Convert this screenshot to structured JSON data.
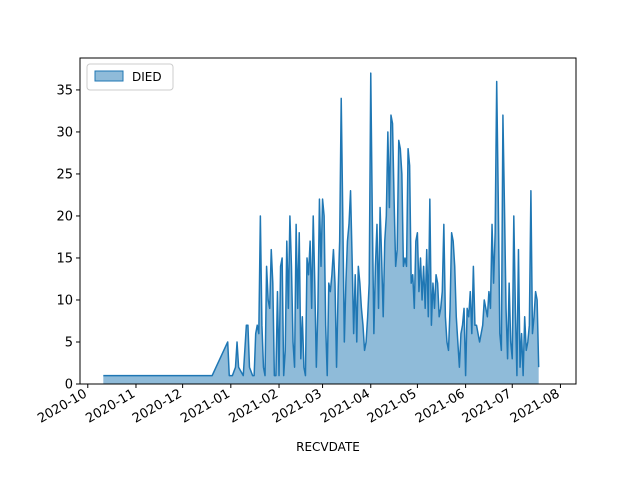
{
  "chart_data": {
    "type": "area",
    "title": "",
    "xlabel": "RECVDATE",
    "ylabel": "",
    "xlim": [
      "2020-09-26",
      "2021-08-11"
    ],
    "ylim": [
      0,
      38.8
    ],
    "x_ticks": [
      "2020-10-01",
      "2020-11-01",
      "2020-12-01",
      "2021-01-01",
      "2021-02-01",
      "2021-03-01",
      "2021-04-01",
      "2021-05-01",
      "2021-06-01",
      "2021-07-01",
      "2021-08-01"
    ],
    "x_tick_labels": [
      "2020-10",
      "2020-11",
      "2020-12",
      "2021-01",
      "2021-02",
      "2021-03",
      "2021-04",
      "2021-05",
      "2021-06",
      "2021-07",
      "2021-08"
    ],
    "y_ticks": [
      0,
      5,
      10,
      15,
      20,
      25,
      30,
      35
    ],
    "y_tick_labels": [
      "0",
      "5",
      "10",
      "15",
      "20",
      "25",
      "30",
      "35"
    ],
    "grid": false,
    "legend": {
      "position": "top-left",
      "entries": [
        "DIED"
      ]
    },
    "colors": {
      "line": "#1f77b4",
      "fill": "#1f77b4",
      "fill_opacity": 0.5
    },
    "series": [
      {
        "name": "DIED",
        "points": [
          [
            "2020-10-11",
            1
          ],
          [
            "2020-11-15",
            1
          ],
          [
            "2020-12-20",
            1
          ],
          [
            "2020-12-30",
            5
          ],
          [
            "2020-12-31",
            1
          ],
          [
            "2021-01-02",
            1
          ],
          [
            "2021-01-04",
            2
          ],
          [
            "2021-01-05",
            5
          ],
          [
            "2021-01-06",
            2
          ],
          [
            "2021-01-09",
            1
          ],
          [
            "2021-01-11",
            7
          ],
          [
            "2021-01-12",
            7
          ],
          [
            "2021-01-13",
            2
          ],
          [
            "2021-01-15",
            1
          ],
          [
            "2021-01-16",
            1
          ],
          [
            "2021-01-17",
            6
          ],
          [
            "2021-01-18",
            7
          ],
          [
            "2021-01-19",
            6
          ],
          [
            "2021-01-20",
            20
          ],
          [
            "2021-01-21",
            7
          ],
          [
            "2021-01-22",
            2
          ],
          [
            "2021-01-23",
            1
          ],
          [
            "2021-01-24",
            14
          ],
          [
            "2021-01-25",
            10
          ],
          [
            "2021-01-26",
            9
          ],
          [
            "2021-01-27",
            16
          ],
          [
            "2021-01-28",
            12
          ],
          [
            "2021-01-29",
            1
          ],
          [
            "2021-01-30",
            1
          ],
          [
            "2021-01-31",
            11
          ],
          [
            "2021-02-01",
            1
          ],
          [
            "2021-02-02",
            14
          ],
          [
            "2021-02-03",
            15
          ],
          [
            "2021-02-04",
            1
          ],
          [
            "2021-02-05",
            4
          ],
          [
            "2021-02-06",
            17
          ],
          [
            "2021-02-07",
            9
          ],
          [
            "2021-02-08",
            20
          ],
          [
            "2021-02-09",
            14
          ],
          [
            "2021-02-10",
            5
          ],
          [
            "2021-02-11",
            2
          ],
          [
            "2021-02-12",
            19
          ],
          [
            "2021-02-13",
            9
          ],
          [
            "2021-02-14",
            18
          ],
          [
            "2021-02-15",
            3
          ],
          [
            "2021-02-16",
            8
          ],
          [
            "2021-02-17",
            2
          ],
          [
            "2021-02-18",
            1
          ],
          [
            "2021-02-19",
            15
          ],
          [
            "2021-02-20",
            13
          ],
          [
            "2021-02-21",
            17
          ],
          [
            "2021-02-22",
            9
          ],
          [
            "2021-02-23",
            20
          ],
          [
            "2021-02-24",
            12
          ],
          [
            "2021-02-25",
            2
          ],
          [
            "2021-02-26",
            9
          ],
          [
            "2021-02-27",
            22
          ],
          [
            "2021-02-28",
            14
          ],
          [
            "2021-03-01",
            22
          ],
          [
            "2021-03-02",
            20
          ],
          [
            "2021-03-03",
            7
          ],
          [
            "2021-03-04",
            1
          ],
          [
            "2021-03-05",
            12
          ],
          [
            "2021-03-06",
            11
          ],
          [
            "2021-03-07",
            13
          ],
          [
            "2021-03-08",
            16
          ],
          [
            "2021-03-09",
            12
          ],
          [
            "2021-03-10",
            2
          ],
          [
            "2021-03-11",
            11
          ],
          [
            "2021-03-12",
            17
          ],
          [
            "2021-03-13",
            34
          ],
          [
            "2021-03-14",
            20
          ],
          [
            "2021-03-15",
            5
          ],
          [
            "2021-03-16",
            12
          ],
          [
            "2021-03-17",
            17
          ],
          [
            "2021-03-18",
            19
          ],
          [
            "2021-03-19",
            23
          ],
          [
            "2021-03-20",
            15
          ],
          [
            "2021-03-21",
            6
          ],
          [
            "2021-03-22",
            13
          ],
          [
            "2021-03-23",
            5
          ],
          [
            "2021-03-24",
            14
          ],
          [
            "2021-03-25",
            12
          ],
          [
            "2021-03-26",
            9
          ],
          [
            "2021-03-27",
            7
          ],
          [
            "2021-03-28",
            4
          ],
          [
            "2021-03-29",
            5
          ],
          [
            "2021-03-30",
            8
          ],
          [
            "2021-03-31",
            12
          ],
          [
            "2021-04-01",
            37
          ],
          [
            "2021-04-02",
            20
          ],
          [
            "2021-04-03",
            6
          ],
          [
            "2021-04-04",
            14
          ],
          [
            "2021-04-05",
            19
          ],
          [
            "2021-04-06",
            9
          ],
          [
            "2021-04-07",
            21
          ],
          [
            "2021-04-08",
            15
          ],
          [
            "2021-04-09",
            8
          ],
          [
            "2021-04-10",
            17
          ],
          [
            "2021-04-11",
            20
          ],
          [
            "2021-04-12",
            30
          ],
          [
            "2021-04-13",
            21
          ],
          [
            "2021-04-14",
            32
          ],
          [
            "2021-04-15",
            31
          ],
          [
            "2021-04-16",
            22
          ],
          [
            "2021-04-17",
            14
          ],
          [
            "2021-04-18",
            16
          ],
          [
            "2021-04-19",
            29
          ],
          [
            "2021-04-20",
            28
          ],
          [
            "2021-04-21",
            25
          ],
          [
            "2021-04-22",
            14
          ],
          [
            "2021-04-23",
            15
          ],
          [
            "2021-04-24",
            14
          ],
          [
            "2021-04-25",
            28
          ],
          [
            "2021-04-26",
            26
          ],
          [
            "2021-04-27",
            12
          ],
          [
            "2021-04-28",
            13
          ],
          [
            "2021-04-29",
            9
          ],
          [
            "2021-04-30",
            17
          ],
          [
            "2021-05-01",
            18
          ],
          [
            "2021-05-02",
            11
          ],
          [
            "2021-05-03",
            15
          ],
          [
            "2021-05-04",
            10
          ],
          [
            "2021-05-05",
            14
          ],
          [
            "2021-05-06",
            9
          ],
          [
            "2021-05-07",
            16
          ],
          [
            "2021-05-08",
            8
          ],
          [
            "2021-05-09",
            22
          ],
          [
            "2021-05-10",
            7
          ],
          [
            "2021-05-11",
            12
          ],
          [
            "2021-05-12",
            9
          ],
          [
            "2021-05-13",
            13
          ],
          [
            "2021-05-14",
            12
          ],
          [
            "2021-05-15",
            8
          ],
          [
            "2021-05-16",
            9
          ],
          [
            "2021-05-17",
            11
          ],
          [
            "2021-05-18",
            19
          ],
          [
            "2021-05-19",
            8
          ],
          [
            "2021-05-20",
            5
          ],
          [
            "2021-05-21",
            4
          ],
          [
            "2021-05-22",
            9
          ],
          [
            "2021-05-23",
            18
          ],
          [
            "2021-05-24",
            17
          ],
          [
            "2021-05-25",
            14
          ],
          [
            "2021-05-26",
            8
          ],
          [
            "2021-05-27",
            5
          ],
          [
            "2021-05-28",
            2
          ],
          [
            "2021-05-29",
            6
          ],
          [
            "2021-05-30",
            7
          ],
          [
            "2021-05-31",
            9
          ],
          [
            "2021-06-01",
            1
          ],
          [
            "2021-06-02",
            9
          ],
          [
            "2021-06-03",
            8
          ],
          [
            "2021-06-04",
            11
          ],
          [
            "2021-06-05",
            6
          ],
          [
            "2021-06-06",
            14
          ],
          [
            "2021-06-07",
            7
          ],
          [
            "2021-06-08",
            7
          ],
          [
            "2021-06-09",
            6
          ],
          [
            "2021-06-10",
            5
          ],
          [
            "2021-06-11",
            6
          ],
          [
            "2021-06-12",
            7
          ],
          [
            "2021-06-13",
            10
          ],
          [
            "2021-06-14",
            9
          ],
          [
            "2021-06-15",
            8
          ],
          [
            "2021-06-16",
            11
          ],
          [
            "2021-06-17",
            9
          ],
          [
            "2021-06-18",
            19
          ],
          [
            "2021-06-19",
            12
          ],
          [
            "2021-06-20",
            18
          ],
          [
            "2021-06-21",
            36
          ],
          [
            "2021-06-22",
            22
          ],
          [
            "2021-06-23",
            6
          ],
          [
            "2021-06-24",
            4
          ],
          [
            "2021-06-25",
            32
          ],
          [
            "2021-06-26",
            21
          ],
          [
            "2021-06-27",
            9
          ],
          [
            "2021-06-28",
            3
          ],
          [
            "2021-06-29",
            12
          ],
          [
            "2021-06-30",
            5
          ],
          [
            "2021-07-01",
            3
          ],
          [
            "2021-07-02",
            20
          ],
          [
            "2021-07-03",
            9
          ],
          [
            "2021-07-04",
            1
          ],
          [
            "2021-07-05",
            16
          ],
          [
            "2021-07-06",
            2
          ],
          [
            "2021-07-07",
            6
          ],
          [
            "2021-07-08",
            1
          ],
          [
            "2021-07-09",
            8
          ],
          [
            "2021-07-10",
            4
          ],
          [
            "2021-07-11",
            5
          ],
          [
            "2021-07-12",
            7
          ],
          [
            "2021-07-13",
            23
          ],
          [
            "2021-07-14",
            6
          ],
          [
            "2021-07-15",
            8
          ],
          [
            "2021-07-16",
            11
          ],
          [
            "2021-07-17",
            10
          ],
          [
            "2021-07-18",
            2
          ]
        ]
      }
    ]
  }
}
